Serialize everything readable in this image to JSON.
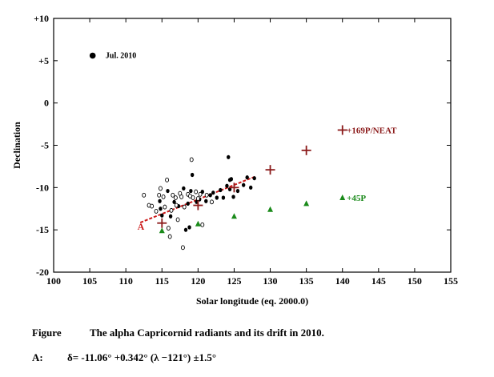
{
  "chart_data": {
    "type": "scatter",
    "title": "",
    "xlabel": "Solar longitude (eq. 2000.0)",
    "ylabel": "Declination",
    "xlim": [
      100,
      155
    ],
    "ylim": [
      -20,
      10
    ],
    "xticks": [
      100,
      105,
      110,
      115,
      120,
      125,
      130,
      135,
      140,
      145,
      150,
      155
    ],
    "yticks": [
      10,
      5,
      0,
      -5,
      -10,
      -15,
      -20
    ],
    "ytick_labels": [
      "+10",
      "+5",
      "0",
      "-5",
      "-10",
      "-15",
      "-20"
    ],
    "legend": {
      "label": "Jul. 2010",
      "placement": "top-left"
    },
    "series": [
      {
        "name": "Jul. 2010 radiants (filled)",
        "marker": "filled-circle",
        "color": "#000000",
        "points": [
          [
            114.7,
            -11.6
          ],
          [
            114.8,
            -12.5
          ],
          [
            115.0,
            -13.3
          ],
          [
            115.8,
            -10.4
          ],
          [
            116.2,
            -13.4
          ],
          [
            116.7,
            -11.7
          ],
          [
            117.3,
            -12.2
          ],
          [
            118.0,
            -10.1
          ],
          [
            118.3,
            -15.0
          ],
          [
            118.6,
            -11.9
          ],
          [
            118.8,
            -14.7
          ],
          [
            119.0,
            -10.4
          ],
          [
            119.2,
            -8.5
          ],
          [
            119.8,
            -11.7
          ],
          [
            120.2,
            -11.4
          ],
          [
            120.6,
            -10.5
          ],
          [
            121.1,
            -11.6
          ],
          [
            121.7,
            -10.9
          ],
          [
            122.1,
            -10.6
          ],
          [
            122.6,
            -11.2
          ],
          [
            123.1,
            -10.3
          ],
          [
            123.5,
            -11.2
          ],
          [
            124.0,
            -9.8
          ],
          [
            124.4,
            -10.2
          ],
          [
            124.4,
            -9.1
          ],
          [
            124.6,
            -9.0
          ],
          [
            124.2,
            -6.4
          ],
          [
            124.9,
            -11.1
          ],
          [
            125.5,
            -10.4
          ],
          [
            126.3,
            -9.7
          ],
          [
            126.8,
            -8.8
          ],
          [
            127.3,
            -10.0
          ],
          [
            127.8,
            -8.9
          ]
        ]
      },
      {
        "name": "Jul. 2010 radiants (open)",
        "marker": "open-circle",
        "color": "#000000",
        "points": [
          [
            112.5,
            -10.9
          ],
          [
            113.2,
            -12.1
          ],
          [
            113.6,
            -12.2
          ],
          [
            114.2,
            -12.8
          ],
          [
            114.6,
            -10.9
          ],
          [
            114.8,
            -10.1
          ],
          [
            115.2,
            -11.1
          ],
          [
            115.4,
            -12.3
          ],
          [
            115.7,
            -9.1
          ],
          [
            115.9,
            -14.8
          ],
          [
            116.1,
            -15.8
          ],
          [
            116.3,
            -12.7
          ],
          [
            116.5,
            -10.9
          ],
          [
            116.9,
            -11.2
          ],
          [
            117.0,
            -12.1
          ],
          [
            117.2,
            -13.8
          ],
          [
            117.5,
            -10.7
          ],
          [
            117.7,
            -11.1
          ],
          [
            117.9,
            -17.1
          ],
          [
            118.1,
            -12.3
          ],
          [
            118.6,
            -10.8
          ],
          [
            118.9,
            -11.0
          ],
          [
            119.1,
            -6.7
          ],
          [
            119.3,
            -11.2
          ],
          [
            119.7,
            -10.5
          ],
          [
            120.0,
            -11.3
          ],
          [
            120.3,
            -10.8
          ],
          [
            120.6,
            -14.4
          ],
          [
            121.2,
            -10.9
          ],
          [
            121.9,
            -11.7
          ]
        ]
      },
      {
        "name": "169P/NEAT",
        "marker": "cross",
        "color": "#8b1a1a",
        "points": [
          [
            115,
            -14.2
          ],
          [
            120,
            -12.1
          ],
          [
            125,
            -10.0
          ],
          [
            130,
            -7.9
          ],
          [
            135,
            -5.6
          ],
          [
            140,
            -3.2
          ]
        ]
      },
      {
        "name": "45P",
        "marker": "triangle",
        "color": "#1a8a1a",
        "points": [
          [
            115,
            -15.1
          ],
          [
            120,
            -14.3
          ],
          [
            125,
            -13.4
          ],
          [
            130,
            -12.6
          ],
          [
            135,
            -11.9
          ],
          [
            140,
            -11.2
          ]
        ]
      }
    ],
    "fit_line": {
      "name": "A",
      "color": "#cc1a1a",
      "style": "dashed",
      "x_range": [
        112,
        128
      ],
      "formula_intercept": -11.06,
      "formula_slope": 0.342,
      "formula_center": 121
    },
    "annotations": {
      "neat": "+169P/NEAT",
      "comet45p": "+45P",
      "fit_label": "A"
    }
  },
  "caption": {
    "label": "Figure",
    "text": "The alpha Capricornid radiants and its drift in 2010."
  },
  "formula": {
    "label": "A:",
    "text": "δ= -11.06°  +0.342°  (λ −121°)   ±1.5°"
  }
}
